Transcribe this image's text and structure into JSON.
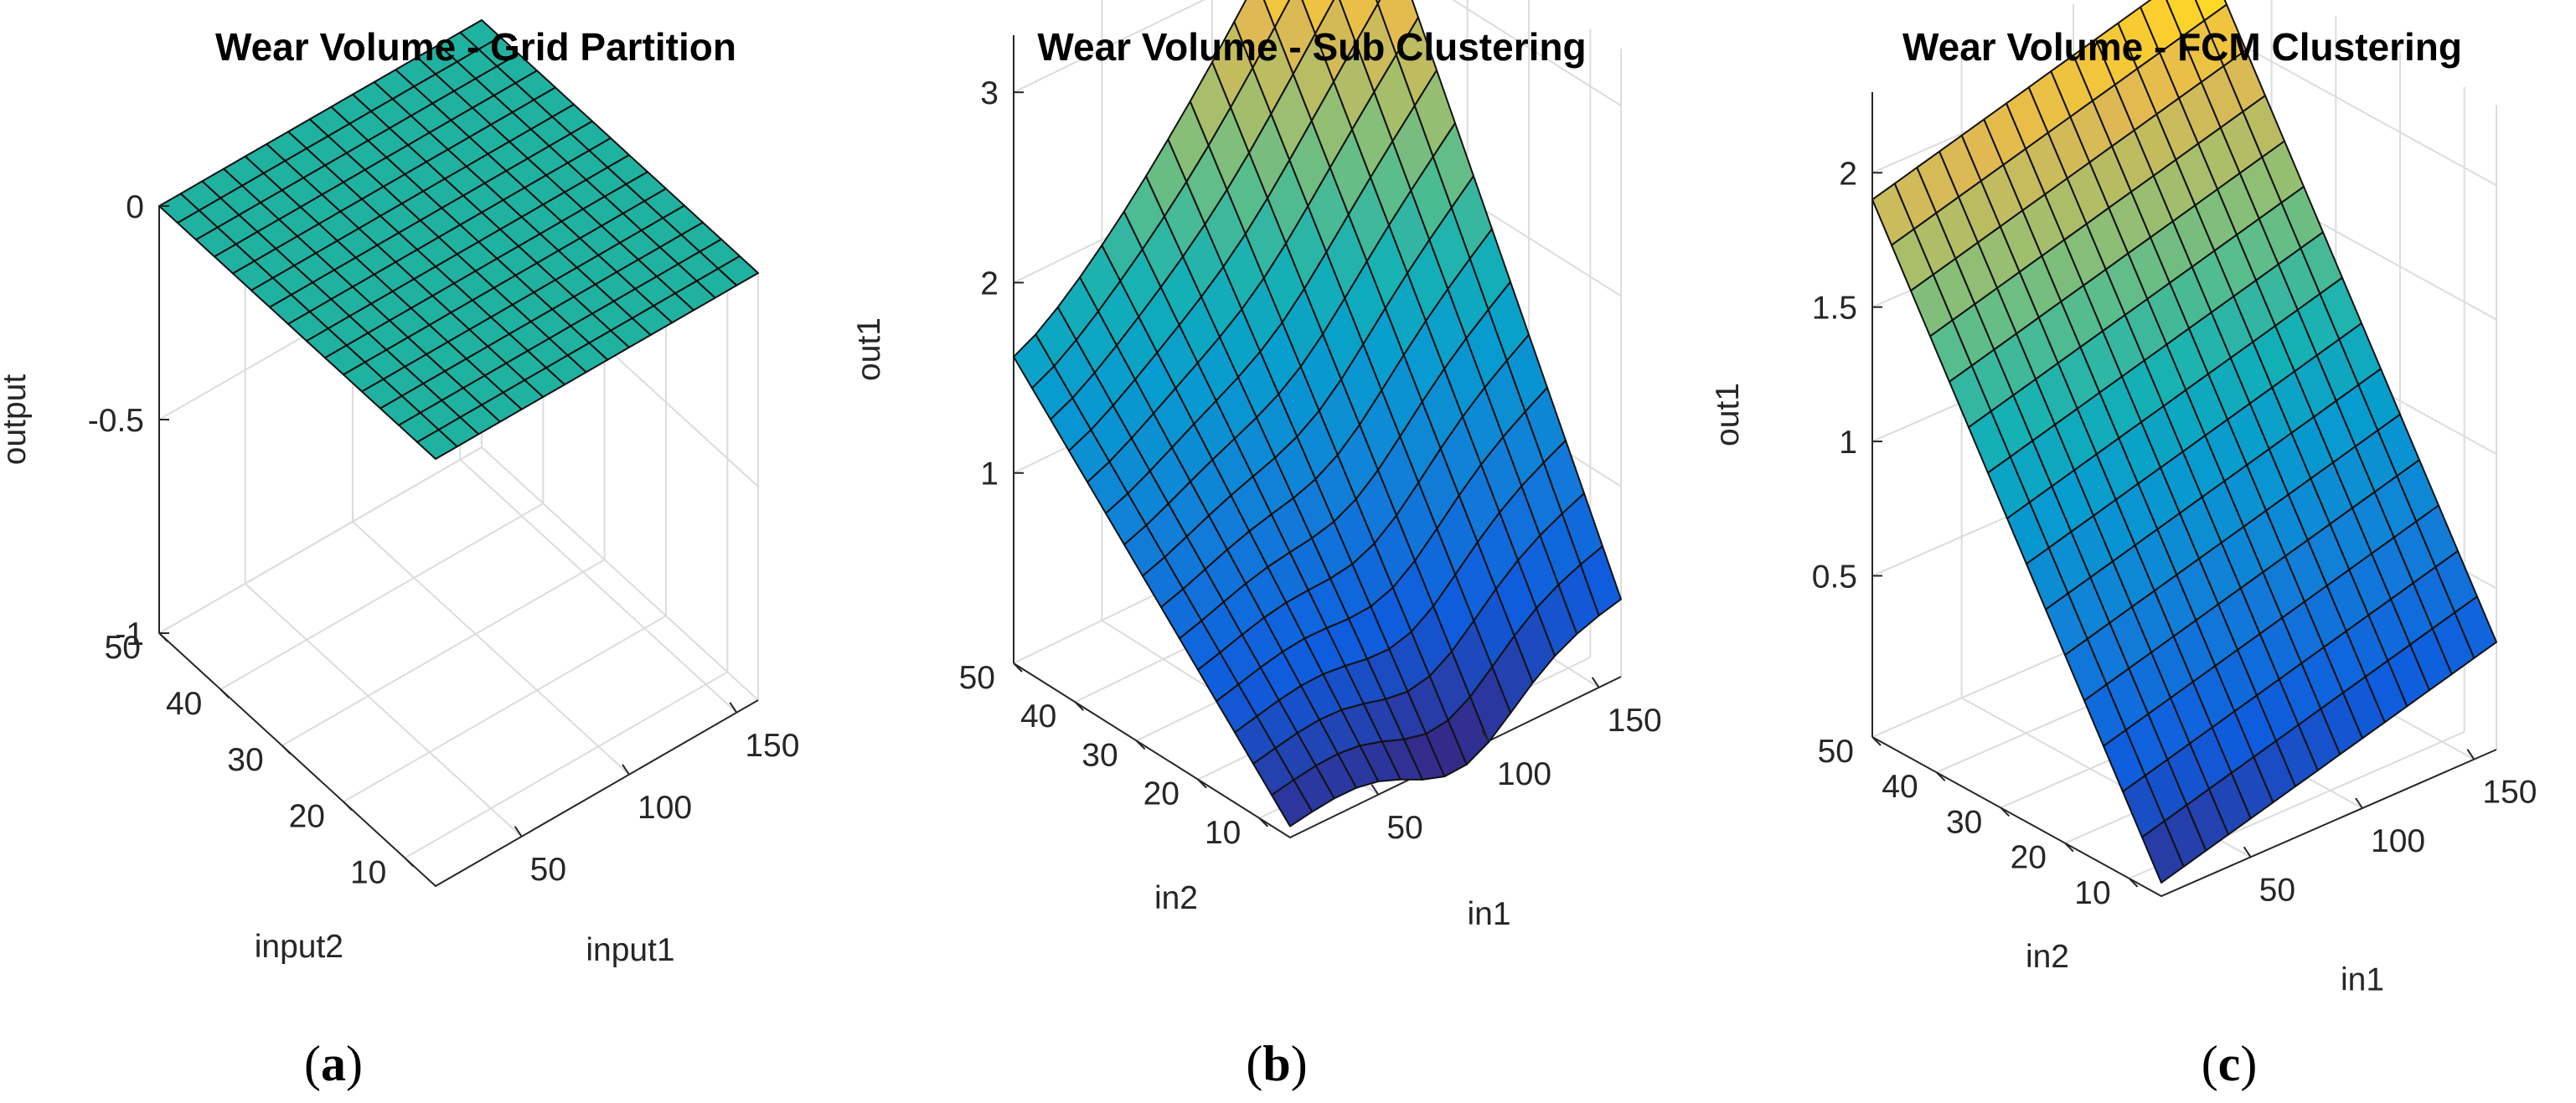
{
  "chart_data": [
    {
      "type": "surface",
      "panel": "a",
      "title": "Wear Volume - Grid Partition",
      "xlabel": "input1",
      "ylabel": "input2",
      "zlabel": "output",
      "xlim": [
        10,
        160
      ],
      "ylim": [
        5,
        50
      ],
      "zlim": [
        -1,
        0
      ],
      "xticks": [
        50,
        100,
        150
      ],
      "yticks": [
        10,
        20,
        30,
        40,
        50
      ],
      "zticks": [
        -1,
        -0.5,
        0
      ],
      "zticklabels": [
        "-1",
        "-0.5",
        "0"
      ],
      "grid": true,
      "colormap": "parula",
      "mesh": [
        15,
        15
      ],
      "surface_formula": "constant",
      "surface_params": {
        "value": 0
      },
      "surface_color": "#20b2a0"
    },
    {
      "type": "surface",
      "panel": "b",
      "title": "Wear Volume - Sub Clustering",
      "xlabel": "in1",
      "ylabel": "in2",
      "zlabel": "out1",
      "xlim": [
        10,
        160
      ],
      "ylim": [
        5,
        50
      ],
      "zlim": [
        0,
        3.3
      ],
      "xticks": [
        50,
        100,
        150
      ],
      "yticks": [
        10,
        20,
        30,
        40,
        50
      ],
      "zticks": [
        1,
        2,
        3
      ],
      "zticklabels": [
        "1",
        "2",
        "3"
      ],
      "grid": true,
      "colormap": "parula",
      "mesh": [
        15,
        15
      ],
      "surface_formula": "peak",
      "surface_params": {
        "base": 0.06,
        "ridge_x": 0.52,
        "ridge_width": 0.22,
        "dip_min": 0.35,
        "y_slope_near": 1.5,
        "y_slope_far": 0.4,
        "x_rise": 0.35
      },
      "corner_values": {
        "in1_10_in2_50": 1.55,
        "in1_160_in2_50": 3.35,
        "in1_10_in2_5": 0.1,
        "in1_160_in2_5": 0.45
      }
    },
    {
      "type": "surface",
      "panel": "c",
      "title": "Wear Volume - FCM Clustering",
      "xlabel": "in1",
      "ylabel": "in2",
      "zlabel": "out1",
      "xlim": [
        10,
        160
      ],
      "ylim": [
        5,
        50
      ],
      "zlim": [
        -0.1,
        2.3
      ],
      "xticks": [
        50,
        100,
        150
      ],
      "yticks": [
        10,
        20,
        30,
        40,
        50
      ],
      "zticks": [
        0.5,
        1,
        1.5,
        2
      ],
      "zticklabels": [
        "0.5",
        "1",
        "1.5",
        "2"
      ],
      "grid": true,
      "colormap": "parula",
      "mesh": [
        15,
        15
      ],
      "surface_formula": "plane",
      "surface_params": {
        "z0": -0.05,
        "x_slope": 0.35,
        "y_slope": 1.95
      },
      "corner_values": {
        "in1_10_in2_50": 1.95,
        "in1_160_in2_50": 2.3,
        "in1_10_in2_5": -0.05,
        "in1_160_in2_5": 0.3
      }
    }
  ],
  "captions": [
    "a",
    "b",
    "c"
  ]
}
